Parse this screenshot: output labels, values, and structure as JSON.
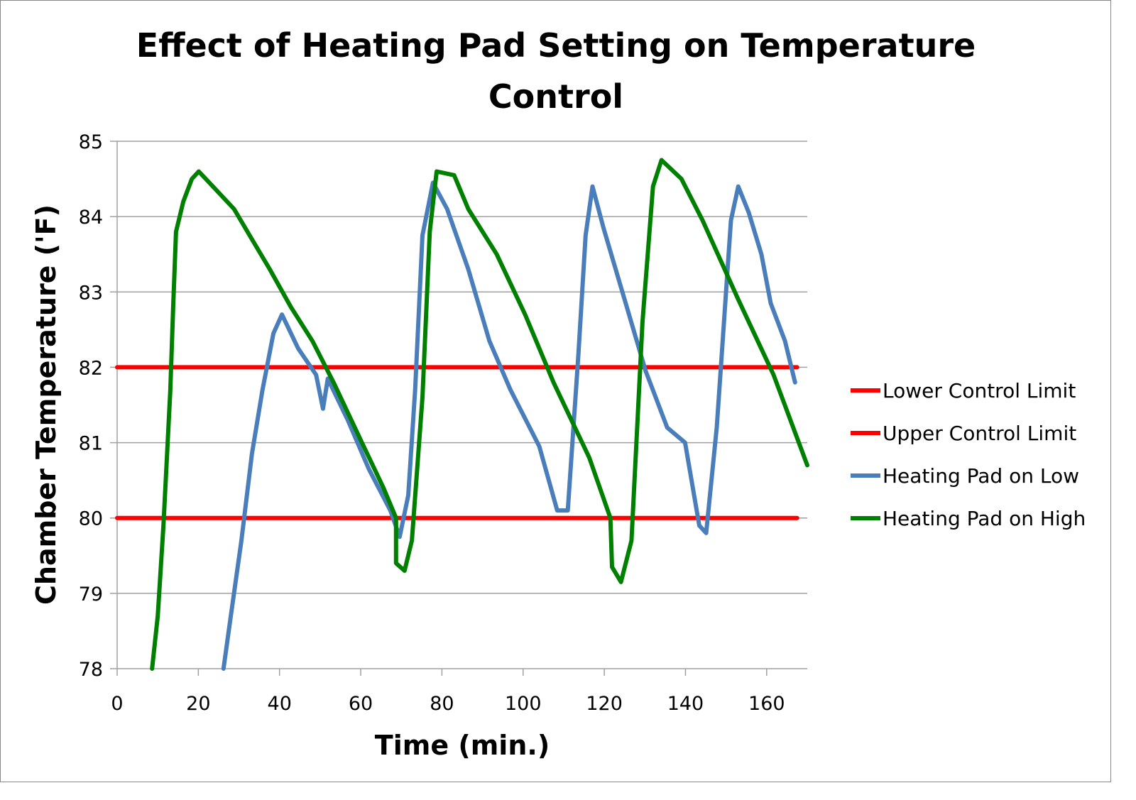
{
  "chart_data": {
    "type": "line",
    "title": "Effect of Heating Pad Setting on Temperature Control",
    "title_lines": [
      "Effect of Heating Pad Setting on Temperature",
      "Control"
    ],
    "xlabel": "Time (min.)",
    "ylabel": "Chamber Temperature ('F)",
    "xlim": [
      0,
      170
    ],
    "ylim": [
      78,
      85
    ],
    "xticks": [
      0,
      20,
      40,
      60,
      80,
      100,
      120,
      140,
      160
    ],
    "yticks": [
      78,
      79,
      80,
      81,
      82,
      83,
      84,
      85
    ],
    "grid": "horizontal",
    "legend_position": "right",
    "series": [
      {
        "name": "Lower Control Limit",
        "color": "#ff0000",
        "x": [
          0,
          167.5
        ],
        "y": [
          82,
          82
        ]
      },
      {
        "name": "Upper Control Limit",
        "color": "#ff0000",
        "x": [
          0,
          167.5
        ],
        "y": [
          80,
          80
        ]
      },
      {
        "name": "Heating Pad on Low",
        "color": "#4a7ebb",
        "x": [
          26.2,
          28,
          30.6,
          33.2,
          35.8,
          38.5,
          40.6,
          44.6,
          49,
          50.7,
          51.9,
          56.8,
          62,
          67.3,
          69.6,
          71.7,
          73.4,
          75.2,
          77.8,
          81.3,
          86.5,
          91.7,
          96.9,
          104,
          108.4,
          111,
          113.6,
          115.4,
          117.1,
          119.8,
          125,
          130.2,
          135.5,
          139.9,
          143.4,
          145.1,
          147.7,
          151.2,
          153,
          155.6,
          158.7,
          161,
          164.5,
          167
        ],
        "y": [
          78,
          78.7,
          79.7,
          80.85,
          81.7,
          82.45,
          82.7,
          82.25,
          81.9,
          81.45,
          81.85,
          81.3,
          80.65,
          80.1,
          79.75,
          80.3,
          81.7,
          83.75,
          84.45,
          84.1,
          83.3,
          82.35,
          81.7,
          80.95,
          80.1,
          80.1,
          82.15,
          83.75,
          84.4,
          83.85,
          82.9,
          81.95,
          81.2,
          81.0,
          79.9,
          79.8,
          81.2,
          83.95,
          84.4,
          84.05,
          83.5,
          82.85,
          82.35,
          81.8
        ]
      },
      {
        "name": "Heating Pad on High",
        "color": "#008000",
        "x": [
          8.6,
          10,
          11.4,
          13.1,
          13.8,
          14.5,
          16.3,
          18.4,
          20.1,
          23.6,
          28.8,
          33.2,
          37.6,
          42.8,
          48.1,
          53.3,
          60.3,
          65.6,
          68.7,
          68.7,
          70.8,
          72.6,
          75.2,
          77,
          78.7,
          83,
          86.5,
          93.5,
          100.5,
          107.5,
          116.3,
          121.5,
          121.9,
          124.1,
          126.7,
          129.4,
          132,
          134.1,
          139,
          144.2,
          153,
          161.7,
          170
        ],
        "y": [
          78,
          78.7,
          79.9,
          81.7,
          82.8,
          83.8,
          84.2,
          84.5,
          84.6,
          84.4,
          84.1,
          83.7,
          83.3,
          82.8,
          82.35,
          81.8,
          81.0,
          80.4,
          80.0,
          79.4,
          79.3,
          79.7,
          81.6,
          83.8,
          84.6,
          84.55,
          84.1,
          83.5,
          82.7,
          81.8,
          80.8,
          80.0,
          79.35,
          79.15,
          79.7,
          82.6,
          84.4,
          84.75,
          84.5,
          83.95,
          82.9,
          81.9,
          80.7
        ]
      }
    ]
  }
}
